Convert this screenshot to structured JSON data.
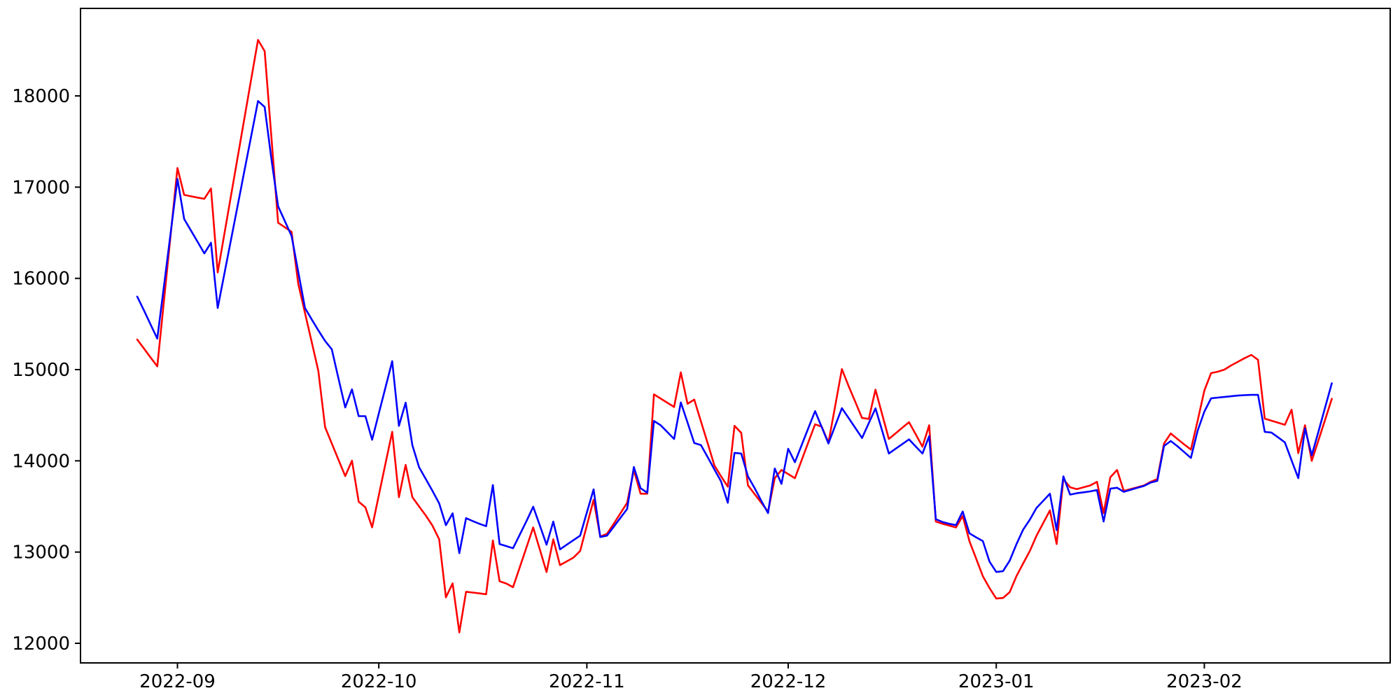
{
  "figure": {
    "background_color": "#ffffff",
    "plot_background_color": "#ffffff",
    "spine_color": "#000000",
    "tick_color": "#000000",
    "label_color": "#000000"
  },
  "chart_data": {
    "type": "line",
    "title": "",
    "xlabel": "",
    "ylabel": "",
    "grid": false,
    "legend": "none",
    "x_tick_labels": [
      "2022-09",
      "2022-10",
      "2022-11",
      "2022-12",
      "2023-01",
      "2023-02"
    ],
    "x_tick_dates": [
      "2022-09-01",
      "2022-10-01",
      "2022-11-01",
      "2022-12-01",
      "2023-01-01",
      "2023-02-01"
    ],
    "y_tick_labels": [
      "12000",
      "13000",
      "14000",
      "15000",
      "16000",
      "17000",
      "18000"
    ],
    "y_ticks": [
      12000,
      13000,
      14000,
      15000,
      16000,
      17000,
      18000
    ],
    "ylim": [
      11790,
      18950
    ],
    "xlim_dates": [
      "2022-08-17",
      "2023-03-02"
    ],
    "x": [
      "2022-08-26",
      "2022-08-27",
      "2022-08-28",
      "2022-08-29",
      "2022-08-30",
      "2022-08-31",
      "2022-09-01",
      "2022-09-02",
      "2022-09-03",
      "2022-09-04",
      "2022-09-05",
      "2022-09-06",
      "2022-09-07",
      "2022-09-08",
      "2022-09-09",
      "2022-09-10",
      "2022-09-11",
      "2022-09-12",
      "2022-09-13",
      "2022-09-14",
      "2022-09-15",
      "2022-09-16",
      "2022-09-17",
      "2022-09-18",
      "2022-09-19",
      "2022-09-20",
      "2022-09-21",
      "2022-09-22",
      "2022-09-23",
      "2022-09-24",
      "2022-09-25",
      "2022-09-26",
      "2022-09-27",
      "2022-09-28",
      "2022-09-29",
      "2022-09-30",
      "2022-10-01",
      "2022-10-02",
      "2022-10-03",
      "2022-10-04",
      "2022-10-05",
      "2022-10-06",
      "2022-10-07",
      "2022-10-08",
      "2022-10-09",
      "2022-10-10",
      "2022-10-11",
      "2022-10-12",
      "2022-10-13",
      "2022-10-14",
      "2022-10-15",
      "2022-10-16",
      "2022-10-17",
      "2022-10-18",
      "2022-10-19",
      "2022-10-20",
      "2022-10-21",
      "2022-10-22",
      "2022-10-23",
      "2022-10-24",
      "2022-10-25",
      "2022-10-26",
      "2022-10-27",
      "2022-10-28",
      "2022-10-29",
      "2022-10-30",
      "2022-10-31",
      "2022-11-01",
      "2022-11-02",
      "2022-11-03",
      "2022-11-04",
      "2022-11-05",
      "2022-11-06",
      "2022-11-07",
      "2022-11-08",
      "2022-11-09",
      "2022-11-10",
      "2022-11-11",
      "2022-11-12",
      "2022-11-13",
      "2022-11-14",
      "2022-11-15",
      "2022-11-16",
      "2022-11-17",
      "2022-11-18",
      "2022-11-19",
      "2022-11-20",
      "2022-11-21",
      "2022-11-22",
      "2022-11-23",
      "2022-11-24",
      "2022-11-25",
      "2022-11-26",
      "2022-11-27",
      "2022-11-28",
      "2022-11-29",
      "2022-11-30",
      "2022-12-01",
      "2022-12-02",
      "2022-12-03",
      "2022-12-04",
      "2022-12-05",
      "2022-12-06",
      "2022-12-07",
      "2022-12-08",
      "2022-12-09",
      "2022-12-10",
      "2022-12-11",
      "2022-12-12",
      "2022-12-13",
      "2022-12-14",
      "2022-12-15",
      "2022-12-16",
      "2022-12-17",
      "2022-12-18",
      "2022-12-19",
      "2022-12-20",
      "2022-12-21",
      "2022-12-22",
      "2022-12-23",
      "2022-12-24",
      "2022-12-25",
      "2022-12-26",
      "2022-12-27",
      "2022-12-28",
      "2022-12-29",
      "2022-12-30",
      "2022-12-31",
      "2023-01-01",
      "2023-01-02",
      "2023-01-03",
      "2023-01-04",
      "2023-01-05",
      "2023-01-06",
      "2023-01-07",
      "2023-01-08",
      "2023-01-09",
      "2023-01-10",
      "2023-01-11",
      "2023-01-12",
      "2023-01-13",
      "2023-01-14",
      "2023-01-15",
      "2023-01-16",
      "2023-01-17",
      "2023-01-18",
      "2023-01-19",
      "2023-01-20",
      "2023-01-21",
      "2023-01-22",
      "2023-01-23",
      "2023-01-24",
      "2023-01-25",
      "2023-01-26",
      "2023-01-27",
      "2023-01-28",
      "2023-01-29",
      "2023-01-30",
      "2023-01-31",
      "2023-02-01",
      "2023-02-02",
      "2023-02-03",
      "2023-02-04",
      "2023-02-05",
      "2023-02-06",
      "2023-02-07",
      "2023-02-08",
      "2023-02-09",
      "2023-02-10",
      "2023-02-11",
      "2023-02-12",
      "2023-02-13",
      "2023-02-14",
      "2023-02-15",
      "2023-02-16",
      "2023-02-17",
      "2023-02-18",
      "2023-02-19",
      "2023-02-20"
    ],
    "series": [
      {
        "name": "red-series",
        "color": "#ff0000",
        "line_width": 2.6,
        "values": [
          15330,
          15232,
          15133,
          15035,
          15760,
          16485,
          17210,
          16915,
          16900,
          16885,
          16872,
          16985,
          16065,
          16490,
          16915,
          17340,
          17765,
          18190,
          18614,
          18490,
          17550,
          16610,
          16560,
          16510,
          15939,
          15621,
          15302,
          14984,
          14370,
          14190,
          14010,
          13833,
          14002,
          13552,
          13490,
          13271,
          13620,
          13970,
          14318,
          13602,
          13956,
          13602,
          13500,
          13400,
          13290,
          13140,
          12504,
          12657,
          12120,
          12565,
          12556,
          12547,
          12538,
          13127,
          12680,
          12655,
          12615,
          12833,
          13051,
          13270,
          13025,
          12780,
          13140,
          12857,
          12898,
          12939,
          13012,
          13292,
          13572,
          13170,
          13200,
          13310,
          13425,
          13540,
          13899,
          13640,
          13640,
          14728,
          14682,
          14636,
          14590,
          14970,
          14625,
          14671,
          14430,
          14193,
          13950,
          13830,
          13717,
          14384,
          14307,
          13732,
          13635,
          13540,
          13443,
          13810,
          13900,
          13855,
          13810,
          14007,
          14204,
          14400,
          14375,
          14200,
          14600,
          15005,
          14820,
          14645,
          14470,
          14460,
          14780,
          14510,
          14240,
          14301,
          14363,
          14424,
          14290,
          14155,
          14390,
          13335,
          13310,
          13290,
          13270,
          13395,
          13120,
          12928,
          12735,
          12605,
          12490,
          12497,
          12560,
          12735,
          12875,
          13012,
          13180,
          13320,
          13457,
          13088,
          13800,
          13710,
          13690,
          13710,
          13730,
          13770,
          13427,
          13820,
          13900,
          13670,
          13690,
          13710,
          13730,
          13770,
          13800,
          14190,
          14300,
          14240,
          14180,
          14124,
          14440,
          14770,
          14962,
          14977,
          15000,
          15046,
          15085,
          15125,
          15161,
          15107,
          14463,
          14440,
          14418,
          14395,
          14560,
          14085,
          14390,
          14000,
          14225,
          14450,
          14680
        ]
      },
      {
        "name": "blue-series",
        "color": "#0000ff",
        "line_width": 2.6,
        "values": [
          15800,
          15650,
          15495,
          15340,
          15920,
          16505,
          17090,
          16650,
          16525,
          16400,
          16274,
          16390,
          15675,
          16053,
          16431,
          16809,
          17188,
          17566,
          17944,
          17878,
          17310,
          16790,
          16628,
          16466,
          16070,
          15675,
          15550,
          15430,
          15314,
          15222,
          14900,
          14585,
          14784,
          14490,
          14490,
          14231,
          14517,
          14804,
          15092,
          14383,
          14638,
          14171,
          13930,
          13800,
          13670,
          13534,
          13295,
          13424,
          12988,
          13372,
          13340,
          13310,
          13284,
          13735,
          13088,
          13066,
          13042,
          13190,
          13340,
          13497,
          13290,
          13080,
          13334,
          13030,
          13080,
          13130,
          13180,
          13435,
          13687,
          13165,
          13180,
          13277,
          13375,
          13472,
          13932,
          13700,
          13650,
          14437,
          14390,
          14315,
          14240,
          14640,
          14420,
          14195,
          14172,
          14040,
          13907,
          13774,
          13541,
          14088,
          14080,
          13830,
          13700,
          13560,
          13427,
          13916,
          13748,
          14132,
          13985,
          14172,
          14359,
          14545,
          14370,
          14190,
          14385,
          14577,
          14470,
          14360,
          14250,
          14413,
          14575,
          14330,
          14080,
          14132,
          14184,
          14235,
          14157,
          14080,
          14270,
          13360,
          13330,
          13310,
          13295,
          13445,
          13205,
          13162,
          13120,
          12895,
          12782,
          12790,
          12905,
          13085,
          13245,
          13355,
          13485,
          13562,
          13640,
          13240,
          13830,
          13630,
          13645,
          13655,
          13665,
          13680,
          13335,
          13695,
          13705,
          13660,
          13682,
          13704,
          13725,
          13762,
          13780,
          14163,
          14217,
          14160,
          14096,
          14032,
          14330,
          14540,
          14685,
          14693,
          14700,
          14708,
          14715,
          14720,
          14723,
          14723,
          14317,
          14310,
          14257,
          14203,
          14005,
          13810,
          14355,
          14060,
          14320,
          14585,
          14850
        ]
      }
    ]
  }
}
